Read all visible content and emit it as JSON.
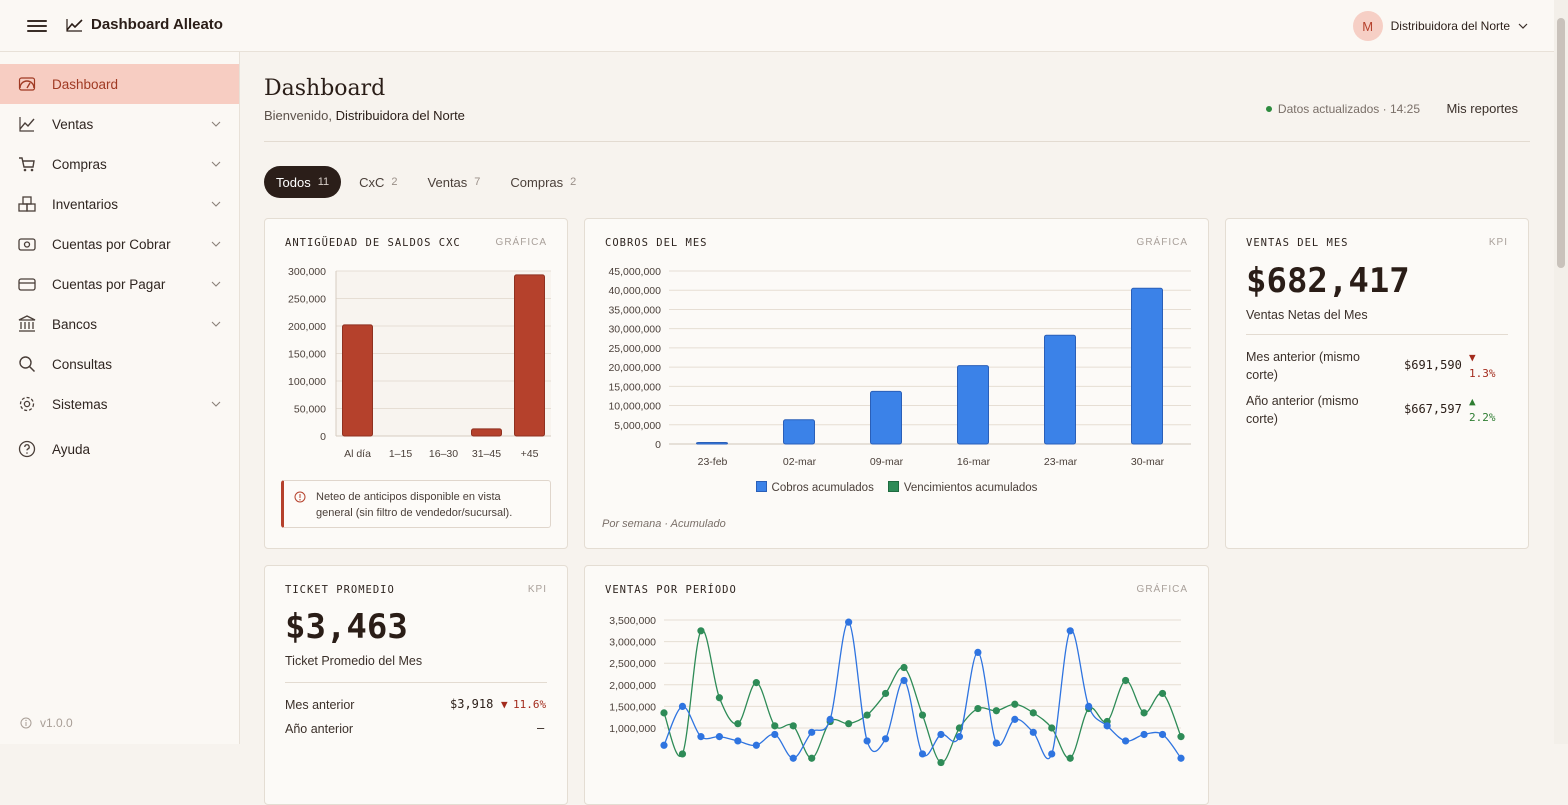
{
  "app": {
    "title": "Dashboard Alleato",
    "user_initial": "M",
    "user_name": "Distribuidora del Norte",
    "version": "v1.0.0"
  },
  "sidebar": {
    "items": [
      {
        "label": "Dashboard",
        "icon": "gauge-icon",
        "active": true,
        "expandable": false
      },
      {
        "label": "Ventas",
        "icon": "trend-icon",
        "expandable": true
      },
      {
        "label": "Compras",
        "icon": "cart-icon",
        "expandable": true
      },
      {
        "label": "Inventarios",
        "icon": "boxes-icon",
        "expandable": true
      },
      {
        "label": "Cuentas por Cobrar",
        "icon": "cash-icon",
        "expandable": true
      },
      {
        "label": "Cuentas por Pagar",
        "icon": "card-icon",
        "expandable": true
      },
      {
        "label": "Bancos",
        "icon": "bank-icon",
        "expandable": true
      },
      {
        "label": "Consultas",
        "icon": "search-icon",
        "expandable": false
      },
      {
        "label": "Sistemas",
        "icon": "gear-icon",
        "expandable": true
      },
      {
        "label": "Ayuda",
        "icon": "help-icon",
        "expandable": false
      }
    ]
  },
  "header": {
    "title": "Dashboard",
    "welcome_prefix": "Bienvenido,",
    "welcome_name": "Distribuidora del Norte",
    "status": "Datos actualizados · 14:25",
    "reports": "Mis reportes"
  },
  "tabs": [
    {
      "label": "Todos",
      "count": "11",
      "active": true
    },
    {
      "label": "CxC",
      "count": "2"
    },
    {
      "label": "Ventas",
      "count": "7"
    },
    {
      "label": "Compras",
      "count": "2"
    }
  ],
  "cards": {
    "aging": {
      "title": "ANTIGÜEDAD DE SALDOS CXC",
      "tag": "GRÁFICA",
      "notice": "Neteo de anticipos disponible en vista general (sin filtro de vendedor/sucursal)."
    },
    "cobros": {
      "title": "COBROS DEL MES",
      "tag": "GRÁFICA",
      "footnote": "Por semana · Acumulado"
    },
    "ventas_mes": {
      "title": "VENTAS DEL MES",
      "tag": "KPI",
      "value": "$682,417",
      "subtitle": "Ventas Netas del Mes",
      "rows": [
        {
          "label": "Mes anterior (mismo corte)",
          "value": "$691,590",
          "arrow": "▼",
          "delta": "1.3%",
          "dir": "down"
        },
        {
          "label": "Año anterior (mismo corte)",
          "value": "$667,597",
          "arrow": "▲",
          "delta": "2.2%",
          "dir": "up"
        }
      ]
    },
    "ticket": {
      "title": "TICKET PROMEDIO",
      "tag": "KPI",
      "value": "$3,463",
      "subtitle": "Ticket Promedio del Mes",
      "rows": [
        {
          "label": "Mes anterior",
          "value": "$3,918",
          "arrow": "▼",
          "delta": "11.6%"
        },
        {
          "label": "Año anterior",
          "value": "—"
        }
      ]
    },
    "ventas_periodo": {
      "title": "VENTAS POR PERÍODO",
      "tag": "GRÁFICA"
    }
  },
  "colors": {
    "accent": "#b5412c",
    "bar_aging": "#b5412c",
    "bar_cobros": "#3b82e8",
    "series_green": "#2e8b57",
    "series_blue": "#2f74e0"
  },
  "chart_data": [
    {
      "type": "bar",
      "categories": [
        "Al día",
        "1–15",
        "16–30",
        "31–45",
        "+45"
      ],
      "values": [
        202000,
        0,
        0,
        13000,
        293000
      ],
      "yticks": [
        "0",
        "50,000",
        "100,000",
        "150,000",
        "200,000",
        "250,000",
        "300,000"
      ],
      "ylim": [
        0,
        300000
      ],
      "grid": true
    },
    {
      "type": "bar",
      "categories": [
        "23-feb",
        "02-mar",
        "09-mar",
        "16-mar",
        "23-mar",
        "30-mar"
      ],
      "series": [
        {
          "name": "Cobros acumulados",
          "values": [
            400000,
            6300000,
            13700000,
            20400000,
            28300000,
            40500000
          ]
        },
        {
          "name": "Vencimientos acumulados",
          "values": [
            0,
            0,
            0,
            0,
            0,
            0
          ]
        }
      ],
      "yticks": [
        "0",
        "5,000,000",
        "10,000,000",
        "15,000,000",
        "20,000,000",
        "25,000,000",
        "30,000,000",
        "35,000,000",
        "40,000,000",
        "45,000,000"
      ],
      "ylim": [
        0,
        45000000
      ],
      "legend": "bottom",
      "grid": true
    },
    {
      "type": "line",
      "yticks_visible": [
        "1,000,000",
        "1,500,000",
        "2,000,000",
        "2,500,000",
        "3,000,000",
        "3,500,000"
      ],
      "ylim": [
        500000,
        3500000
      ],
      "series": [
        {
          "color": "green",
          "values": [
            1350000,
            400000,
            3250000,
            1700000,
            1100000,
            2050000,
            1050000,
            1050000,
            300000,
            1150000,
            1100000,
            1300000,
            1800000,
            2400000,
            1300000,
            200000,
            1000000,
            1450000,
            1400000,
            1550000,
            1350000,
            1000000,
            300000,
            1450000,
            1150000,
            2100000,
            1350000,
            1800000,
            800000
          ]
        },
        {
          "color": "blue",
          "values": [
            600000,
            1500000,
            800000,
            800000,
            700000,
            600000,
            850000,
            300000,
            900000,
            1200000,
            3450000,
            700000,
            750000,
            2100000,
            400000,
            850000,
            800000,
            2750000,
            650000,
            1200000,
            900000,
            400000,
            3250000,
            1500000,
            1050000,
            700000,
            850000,
            850000,
            300000
          ]
        }
      ],
      "grid": true
    }
  ]
}
